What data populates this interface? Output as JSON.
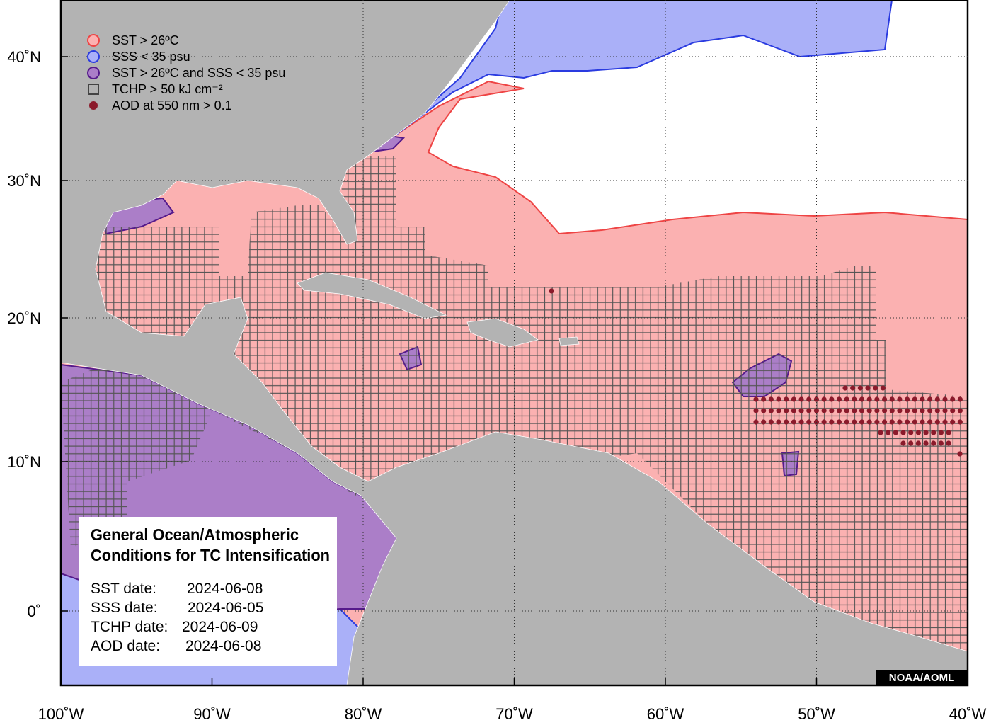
{
  "legend": [
    "SST > 26ºC",
    "SSS < 35 psu",
    "SST > 26ºC and SSS < 35 psu",
    "TCHP > 50 kJ cm⁻²",
    "AOD at 550 nm > 0.1"
  ],
  "axes": {
    "x_ticks": [
      {
        "value": -100,
        "label": "100˚W"
      },
      {
        "value": -90,
        "label": "90˚W"
      },
      {
        "value": -80,
        "label": "80˚W"
      },
      {
        "value": -70,
        "label": "70˚W"
      },
      {
        "value": -60,
        "label": "60˚W"
      },
      {
        "value": -50,
        "label": "50˚W"
      },
      {
        "value": -40,
        "label": "40˚W"
      }
    ],
    "y_ticks": [
      {
        "value": 40,
        "label": "40˚N"
      },
      {
        "value": 30,
        "label": "30˚N"
      },
      {
        "value": 20,
        "label": "20˚N"
      },
      {
        "value": 10,
        "label": "10˚N"
      },
      {
        "value": 0,
        "label": "0˚"
      }
    ]
  },
  "info_box": {
    "title": [
      "General Ocean/Atmospheric",
      "Conditions for TC Intensification"
    ],
    "dates": [
      {
        "label": "SST date:",
        "value": "2024-06-08"
      },
      {
        "label": "SSS date:",
        "value": "2024-06-05"
      },
      {
        "label": "TCHP date:",
        "value": "2024-06-09"
      },
      {
        "label": "AOD date:",
        "value": "2024-06-08"
      }
    ]
  },
  "credit": "NOAA/AOML"
}
